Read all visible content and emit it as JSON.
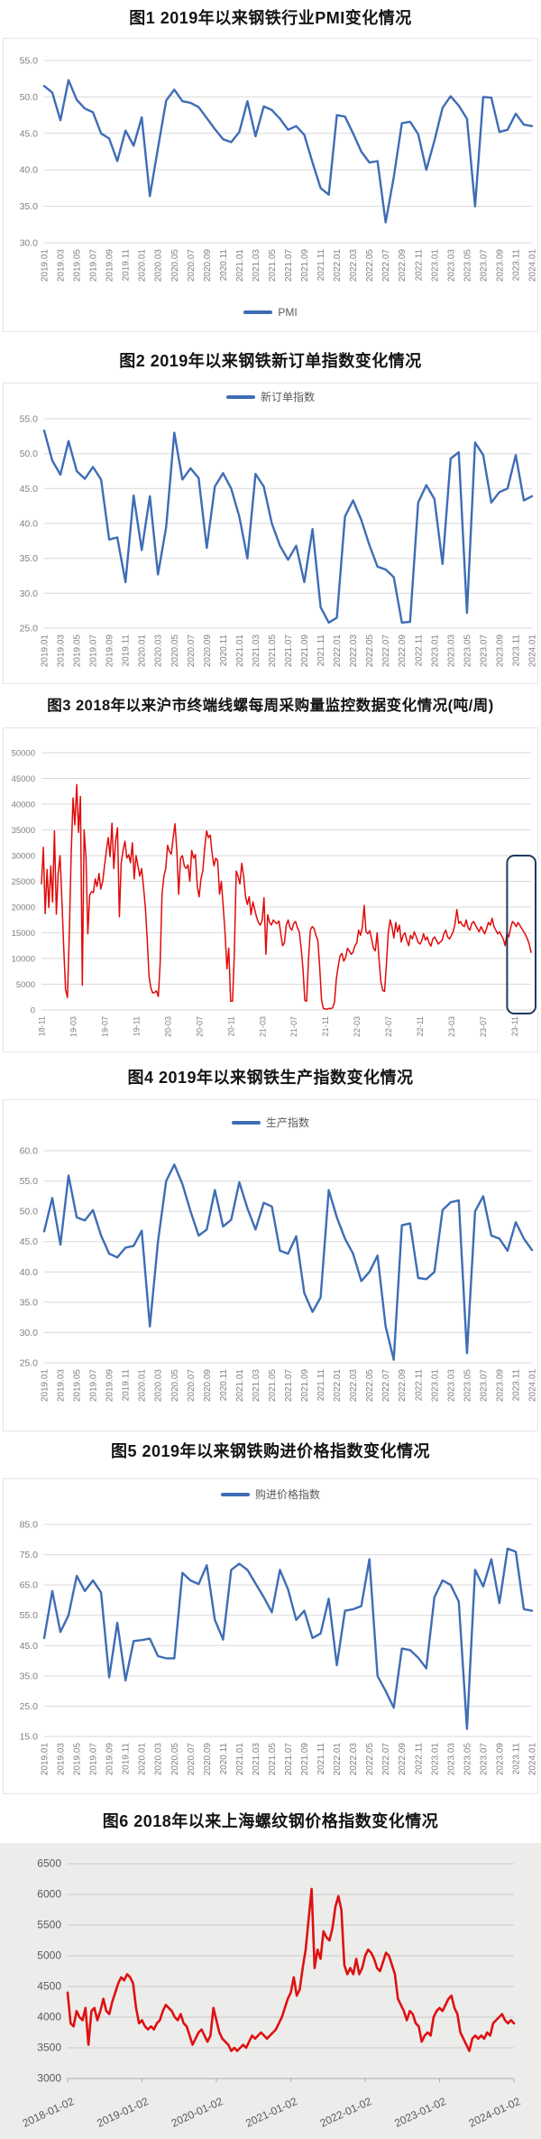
{
  "page_background": "#ffffff",
  "chart_data": [
    {
      "id": "pmi",
      "type": "line",
      "title": "图1 2019年以来钢铁行业PMI变化情况",
      "legend": "PMI",
      "legend_position": "bottom",
      "line_color": "#3e6db5",
      "line_width": 2.4,
      "grid_color": "#d9d9d9",
      "grid": true,
      "x_description": "monthly 2019.01 - 2024.01",
      "x_tick_step": 2,
      "x_tick_labels": [
        "2019.01",
        "2019.03",
        "2019.05",
        "2019.07",
        "2019.09",
        "2019.11",
        "2020.01",
        "2020.03",
        "2020.05",
        "2020.07",
        "2020.09",
        "2020.11",
        "2021.01",
        "2021.03",
        "2021.05",
        "2021.07",
        "2021.09",
        "2021.11",
        "2022.01",
        "2022.03",
        "2022.05",
        "2022.07",
        "2022.09",
        "2022.11",
        "2023.01",
        "2023.03",
        "2023.05",
        "2023.07",
        "2023.09",
        "2023.11",
        "2024.01"
      ],
      "ylim": [
        30,
        55
      ],
      "y_ticks": [
        55,
        50,
        45,
        40,
        35,
        30
      ],
      "y_tick_labels": [
        "55.0",
        "50.0",
        "45.0",
        "40.0",
        "35.0",
        "30.0"
      ],
      "values": [
        51.5,
        50.6,
        46.8,
        52.3,
        49.6,
        48.4,
        47.9,
        45.0,
        44.3,
        41.2,
        45.4,
        43.3,
        47.2,
        36.4,
        43.0,
        49.5,
        51.0,
        49.4,
        49.2,
        48.6,
        47.1,
        45.6,
        44.2,
        43.8,
        45.2,
        49.4,
        44.6,
        48.7,
        48.2,
        47.0,
        45.5,
        46.0,
        44.8,
        41.0,
        37.5,
        36.6,
        47.5,
        47.3,
        45.0,
        42.5,
        41.0,
        41.2,
        32.8,
        39.0,
        46.4,
        46.6,
        44.9,
        40.0,
        44.0,
        48.5,
        50.1,
        48.8,
        47.0,
        35.0,
        50.0,
        49.9,
        45.2,
        45.5,
        47.7,
        46.2,
        46.0
      ]
    },
    {
      "id": "new-orders",
      "type": "line",
      "title": "图2 2019年以来钢铁新订单指数变化情况",
      "legend": "新订单指数",
      "legend_position": "top",
      "line_color": "#3e6db5",
      "line_width": 2.4,
      "grid_color": "#d9d9d9",
      "grid": true,
      "x_description": "monthly 2019.01 - 2024.01",
      "x_tick_step": 2,
      "x_tick_labels": [
        "2019.01",
        "2019.03",
        "2019.05",
        "2019.07",
        "2019.09",
        "2019.11",
        "2020.01",
        "2020.03",
        "2020.05",
        "2020.07",
        "2020.09",
        "2020.11",
        "2021.01",
        "2021.03",
        "2021.05",
        "2021.07",
        "2021.09",
        "2021.11",
        "2022.01",
        "2022.03",
        "2022.05",
        "2022.07",
        "2022.09",
        "2022.11",
        "2023.01",
        "2023.03",
        "2023.05",
        "2023.07",
        "2023.09",
        "2023.11",
        "2024.01"
      ],
      "ylim": [
        25,
        55
      ],
      "y_ticks": [
        55,
        50,
        45,
        40,
        35,
        30,
        25
      ],
      "y_tick_labels": [
        "55.0",
        "50.0",
        "45.0",
        "40.0",
        "35.0",
        "30.0",
        "25.0"
      ],
      "values": [
        53.3,
        49.0,
        47.0,
        51.8,
        47.5,
        46.4,
        48.1,
        46.3,
        37.7,
        38.0,
        31.6,
        44.0,
        36.2,
        43.9,
        32.7,
        39.5,
        53.0,
        46.3,
        47.9,
        46.5,
        36.5,
        45.3,
        47.2,
        45.0,
        41.0,
        35.0,
        47.1,
        45.3,
        40.0,
        36.8,
        34.8,
        36.8,
        31.6,
        39.2,
        28.0,
        25.8,
        26.5,
        41.0,
        43.3,
        40.5,
        36.9,
        33.8,
        33.4,
        32.3,
        25.8,
        25.9,
        43.0,
        45.5,
        43.5,
        34.2,
        49.3,
        50.2,
        27.2,
        51.6,
        49.8,
        43.0,
        44.5,
        45.0,
        49.8,
        43.3,
        43.9
      ]
    },
    {
      "id": "weekly-purchase",
      "type": "line",
      "title": "图3 2018年以来沪市终端线螺每周采购量监控数据变化情况(吨/周)",
      "legend": null,
      "unit": "吨/周",
      "line_color": "#e00b0b",
      "line_width": 1.5,
      "grid_color": "#d9d9d9",
      "grid": true,
      "x_description": "weekly 2018-11 - 2024-01",
      "x_tick_indices": [
        0,
        17,
        34,
        51,
        68,
        85,
        102,
        119,
        136,
        153,
        170,
        187,
        204,
        221,
        238,
        255
      ],
      "x_tick_labels": [
        "18-11",
        "19-03",
        "19-07",
        "19-11",
        "20-03",
        "20-07",
        "20-11",
        "21-03",
        "21-07",
        "21-11",
        "22-03",
        "22-07",
        "22-11",
        "23-03",
        "23-07",
        "23-11"
      ],
      "ylim": [
        0,
        50000
      ],
      "y_ticks": [
        50000,
        45000,
        40000,
        35000,
        30000,
        25000,
        20000,
        15000,
        10000,
        5000,
        0
      ],
      "y_tick_labels": [
        "50000",
        "45000",
        "40000",
        "35000",
        "30000",
        "25000",
        "20000",
        "15000",
        "10000",
        "5000",
        "0"
      ],
      "highlight_box": {
        "from_index": 253,
        "to_index": 264,
        "y_top": 30000,
        "color": "#1f3a5f"
      },
      "values": [
        24500,
        31600,
        18700,
        27300,
        19900,
        28000,
        21000,
        34800,
        18600,
        26500,
        30000,
        21500,
        12000,
        4000,
        2400,
        15000,
        30000,
        41200,
        36000,
        43800,
        34500,
        41500,
        4800,
        35000,
        29500,
        14800,
        22300,
        23000,
        22800,
        25500,
        24000,
        26500,
        23500,
        25000,
        28000,
        31000,
        33500,
        29800,
        36300,
        27500,
        33000,
        35400,
        18100,
        28500,
        31000,
        32800,
        29500,
        30200,
        28600,
        32500,
        25500,
        30000,
        28000,
        26000,
        27500,
        24000,
        20000,
        14000,
        6500,
        4200,
        3300,
        3400,
        3700,
        2600,
        9000,
        22500,
        26000,
        27500,
        32000,
        30800,
        30300,
        33400,
        36200,
        31000,
        22500,
        29500,
        30000,
        28000,
        27500,
        28200,
        25000,
        31000,
        29500,
        30200,
        24000,
        22000,
        25500,
        27000,
        31500,
        34800,
        33500,
        34000,
        30500,
        28000,
        29500,
        29000,
        22500,
        25000,
        20000,
        15000,
        8000,
        12000,
        1700,
        1700,
        11000,
        27000,
        26000,
        24500,
        28500,
        26000,
        22000,
        20500,
        22000,
        18500,
        21000,
        19500,
        18000,
        17000,
        16500,
        17500,
        21800,
        10800,
        18500,
        17000,
        16500,
        17500,
        17000,
        16800,
        17300,
        15000,
        12500,
        13000,
        16500,
        17500,
        16000,
        15500,
        16800,
        17200,
        16000,
        15200,
        12000,
        8000,
        1800,
        1700,
        10000,
        15500,
        16200,
        15800,
        14500,
        13500,
        8500,
        2000,
        300,
        200,
        150,
        300,
        250,
        400,
        1500,
        6000,
        8500,
        10500,
        11000,
        9500,
        10200,
        12000,
        11500,
        10800,
        11200,
        12500,
        13000,
        15500,
        14500,
        16000,
        20300,
        15200,
        14800,
        15400,
        13800,
        12000,
        11500,
        15000,
        10000,
        5500,
        3800,
        3600,
        9000,
        15000,
        17500,
        16200,
        14000,
        17000,
        15200,
        16500,
        13200,
        14500,
        15000,
        13500,
        12500,
        14500,
        13800,
        15200,
        14300,
        13200,
        12800,
        13400,
        14800,
        13600,
        14200,
        13000,
        12400,
        13800,
        14200,
        13500,
        12800,
        13200,
        13500,
        14800,
        15500,
        14200,
        13800,
        14500,
        15200,
        16800,
        19500,
        16800,
        17200,
        16500,
        16200,
        17500,
        16000,
        15500,
        16800,
        17200,
        16500,
        15800,
        15200,
        16200,
        15500,
        14800,
        15800,
        17000,
        16500,
        17800,
        16200,
        15500,
        14800,
        15200,
        14500,
        13800,
        12500,
        15000,
        14200,
        16000,
        17200,
        16800,
        16200,
        17000,
        16400,
        15800,
        15200,
        14600,
        13800,
        12800,
        11200
      ]
    },
    {
      "id": "production",
      "type": "line",
      "title": "图4 2019年以来钢铁生产指数变化情况",
      "legend": "生产指数",
      "legend_position": "top",
      "line_color": "#3e6db5",
      "line_width": 2.4,
      "grid_color": "#d9d9d9",
      "grid": true,
      "x_description": "monthly 2019.01 - 2024.01",
      "x_tick_step": 2,
      "x_tick_labels": [
        "2019.01",
        "2019.03",
        "2019.05",
        "2019.07",
        "2019.09",
        "2019.11",
        "2020.01",
        "2020.03",
        "2020.05",
        "2020.07",
        "2020.09",
        "2020.11",
        "2021.01",
        "2021.03",
        "2021.05",
        "2021.07",
        "2021.09",
        "2021.11",
        "2022.01",
        "2022.03",
        "2022.05",
        "2022.07",
        "2022.09",
        "2022.11",
        "2023.01",
        "2023.03",
        "2023.05",
        "2023.07",
        "2023.09",
        "2023.11",
        "2024.01"
      ],
      "ylim": [
        25,
        60
      ],
      "y_ticks": [
        60,
        55,
        50,
        45,
        40,
        35,
        30,
        25
      ],
      "y_tick_labels": [
        "60.0",
        "55.0",
        "50.0",
        "45.0",
        "40.0",
        "35.0",
        "30.0",
        "25.0"
      ],
      "values": [
        46.7,
        52.2,
        44.5,
        55.9,
        49.0,
        48.5,
        50.2,
        46.0,
        43.0,
        42.4,
        44.0,
        44.3,
        46.8,
        31.0,
        45.0,
        55.0,
        57.7,
        54.5,
        50.0,
        46.0,
        47.0,
        53.5,
        47.5,
        48.6,
        54.8,
        50.5,
        47.0,
        51.4,
        50.8,
        43.5,
        43.0,
        45.9,
        36.5,
        33.4,
        35.8,
        53.5,
        49.0,
        45.5,
        43.0,
        38.5,
        40.0,
        42.7,
        31.0,
        25.5,
        47.7,
        48.0,
        39.0,
        38.8,
        40.0,
        50.2,
        51.5,
        51.8,
        26.6,
        50.0,
        52.5,
        46.0,
        45.5,
        43.5,
        48.2,
        45.5,
        43.6
      ]
    },
    {
      "id": "purchase-price",
      "type": "line",
      "title": "图5 2019年以来钢铁购进价格指数变化情况",
      "legend": "购进价格指数",
      "legend_position": "top",
      "line_color": "#3e6db5",
      "line_width": 2.4,
      "grid_color": "#d9d9d9",
      "grid": true,
      "x_description": "monthly 2019.01 - 2024.01",
      "x_tick_step": 2,
      "x_tick_labels": [
        "2019.01",
        "2019.03",
        "2019.05",
        "2019.07",
        "2019.09",
        "2019.11",
        "2020.01",
        "2020.03",
        "2020.05",
        "2020.07",
        "2020.09",
        "2020.11",
        "2021.01",
        "2021.03",
        "2021.05",
        "2021.07",
        "2021.09",
        "2021.11",
        "2022.01",
        "2022.03",
        "2022.05",
        "2022.07",
        "2022.09",
        "2022.11",
        "2023.01",
        "2023.03",
        "2023.05",
        "2023.07",
        "2023.09",
        "2023.11",
        "2024.01"
      ],
      "ylim": [
        15,
        85
      ],
      "y_ticks": [
        85,
        75,
        65,
        55,
        45,
        35,
        25,
        15
      ],
      "y_tick_labels": [
        "85.0",
        "75.0",
        "65.0",
        "55.0",
        "45.0",
        "35.0",
        "25.0",
        "15.0"
      ],
      "values": [
        47.5,
        63.0,
        49.5,
        55.0,
        68.0,
        63.0,
        66.5,
        62.5,
        34.5,
        52.5,
        33.5,
        46.5,
        46.8,
        47.3,
        41.5,
        40.8,
        40.8,
        69.0,
        66.5,
        65.3,
        71.5,
        53.5,
        47.0,
        70.0,
        72.0,
        70.0,
        65.5,
        61.0,
        56.0,
        70.0,
        63.5,
        53.5,
        56.5,
        47.5,
        49.0,
        60.5,
        38.5,
        56.5,
        57.0,
        58.0,
        73.5,
        35.0,
        30.0,
        24.5,
        44.0,
        43.5,
        41.0,
        37.5,
        61.0,
        66.5,
        65.0,
        59.5,
        17.5,
        70.0,
        64.5,
        73.5,
        59.0,
        77.0,
        76.0,
        57.0,
        56.5
      ]
    },
    {
      "id": "rebar-price",
      "type": "line",
      "title": "图6 2018年以来上海螺纹钢价格指数变化情况",
      "legend": null,
      "line_color": "#e01010",
      "line_width": 2.6,
      "grid_color": "#c9c9c9",
      "grid": true,
      "background": "#ecedeb",
      "x_description": "daily 2018-01-02 - 2024-01",
      "x_tick_indices": [
        0,
        25,
        50,
        75,
        100,
        125,
        150
      ],
      "x_tick_labels": [
        "2018-01-02",
        "2019-01-02",
        "2020-01-02",
        "2021-01-02",
        "2022-01-02",
        "2023-01-02",
        "2024-01-02"
      ],
      "ylim": [
        3000,
        6500
      ],
      "y_ticks": [
        6500,
        6000,
        5500,
        5000,
        4500,
        4000,
        3500,
        3000
      ],
      "y_tick_labels": [
        "6500",
        "6000",
        "5500",
        "5000",
        "4500",
        "4000",
        "3500",
        "3000"
      ],
      "values": [
        4400,
        3900,
        3850,
        4100,
        4000,
        3950,
        4150,
        3550,
        4100,
        4150,
        3950,
        4100,
        4300,
        4100,
        4050,
        4250,
        4400,
        4550,
        4650,
        4600,
        4700,
        4650,
        4550,
        4150,
        3900,
        3950,
        3850,
        3800,
        3850,
        3800,
        3900,
        3950,
        4100,
        4200,
        4150,
        4100,
        4000,
        3950,
        4050,
        3900,
        3850,
        3700,
        3550,
        3650,
        3750,
        3800,
        3700,
        3600,
        3700,
        4150,
        3950,
        3750,
        3650,
        3600,
        3550,
        3450,
        3500,
        3450,
        3500,
        3550,
        3500,
        3600,
        3700,
        3650,
        3700,
        3750,
        3700,
        3650,
        3700,
        3750,
        3800,
        3900,
        4000,
        4150,
        4300,
        4400,
        4650,
        4350,
        4450,
        4800,
        5100,
        5600,
        6090,
        4800,
        5100,
        4950,
        5400,
        5300,
        5250,
        5450,
        5800,
        5970,
        5750,
        4850,
        4700,
        4800,
        4700,
        4950,
        4700,
        4800,
        5000,
        5100,
        5050,
        4950,
        4800,
        4750,
        4900,
        5050,
        5000,
        4850,
        4700,
        4300,
        4200,
        4100,
        3950,
        4100,
        4050,
        3900,
        3850,
        3600,
        3700,
        3750,
        3700,
        4000,
        4100,
        4150,
        4100,
        4200,
        4300,
        4350,
        4150,
        4050,
        3750,
        3650,
        3550,
        3450,
        3650,
        3700,
        3650,
        3700,
        3650,
        3750,
        3700,
        3900,
        3950,
        4000,
        4050,
        3950,
        3900,
        3950,
        3900
      ]
    }
  ]
}
